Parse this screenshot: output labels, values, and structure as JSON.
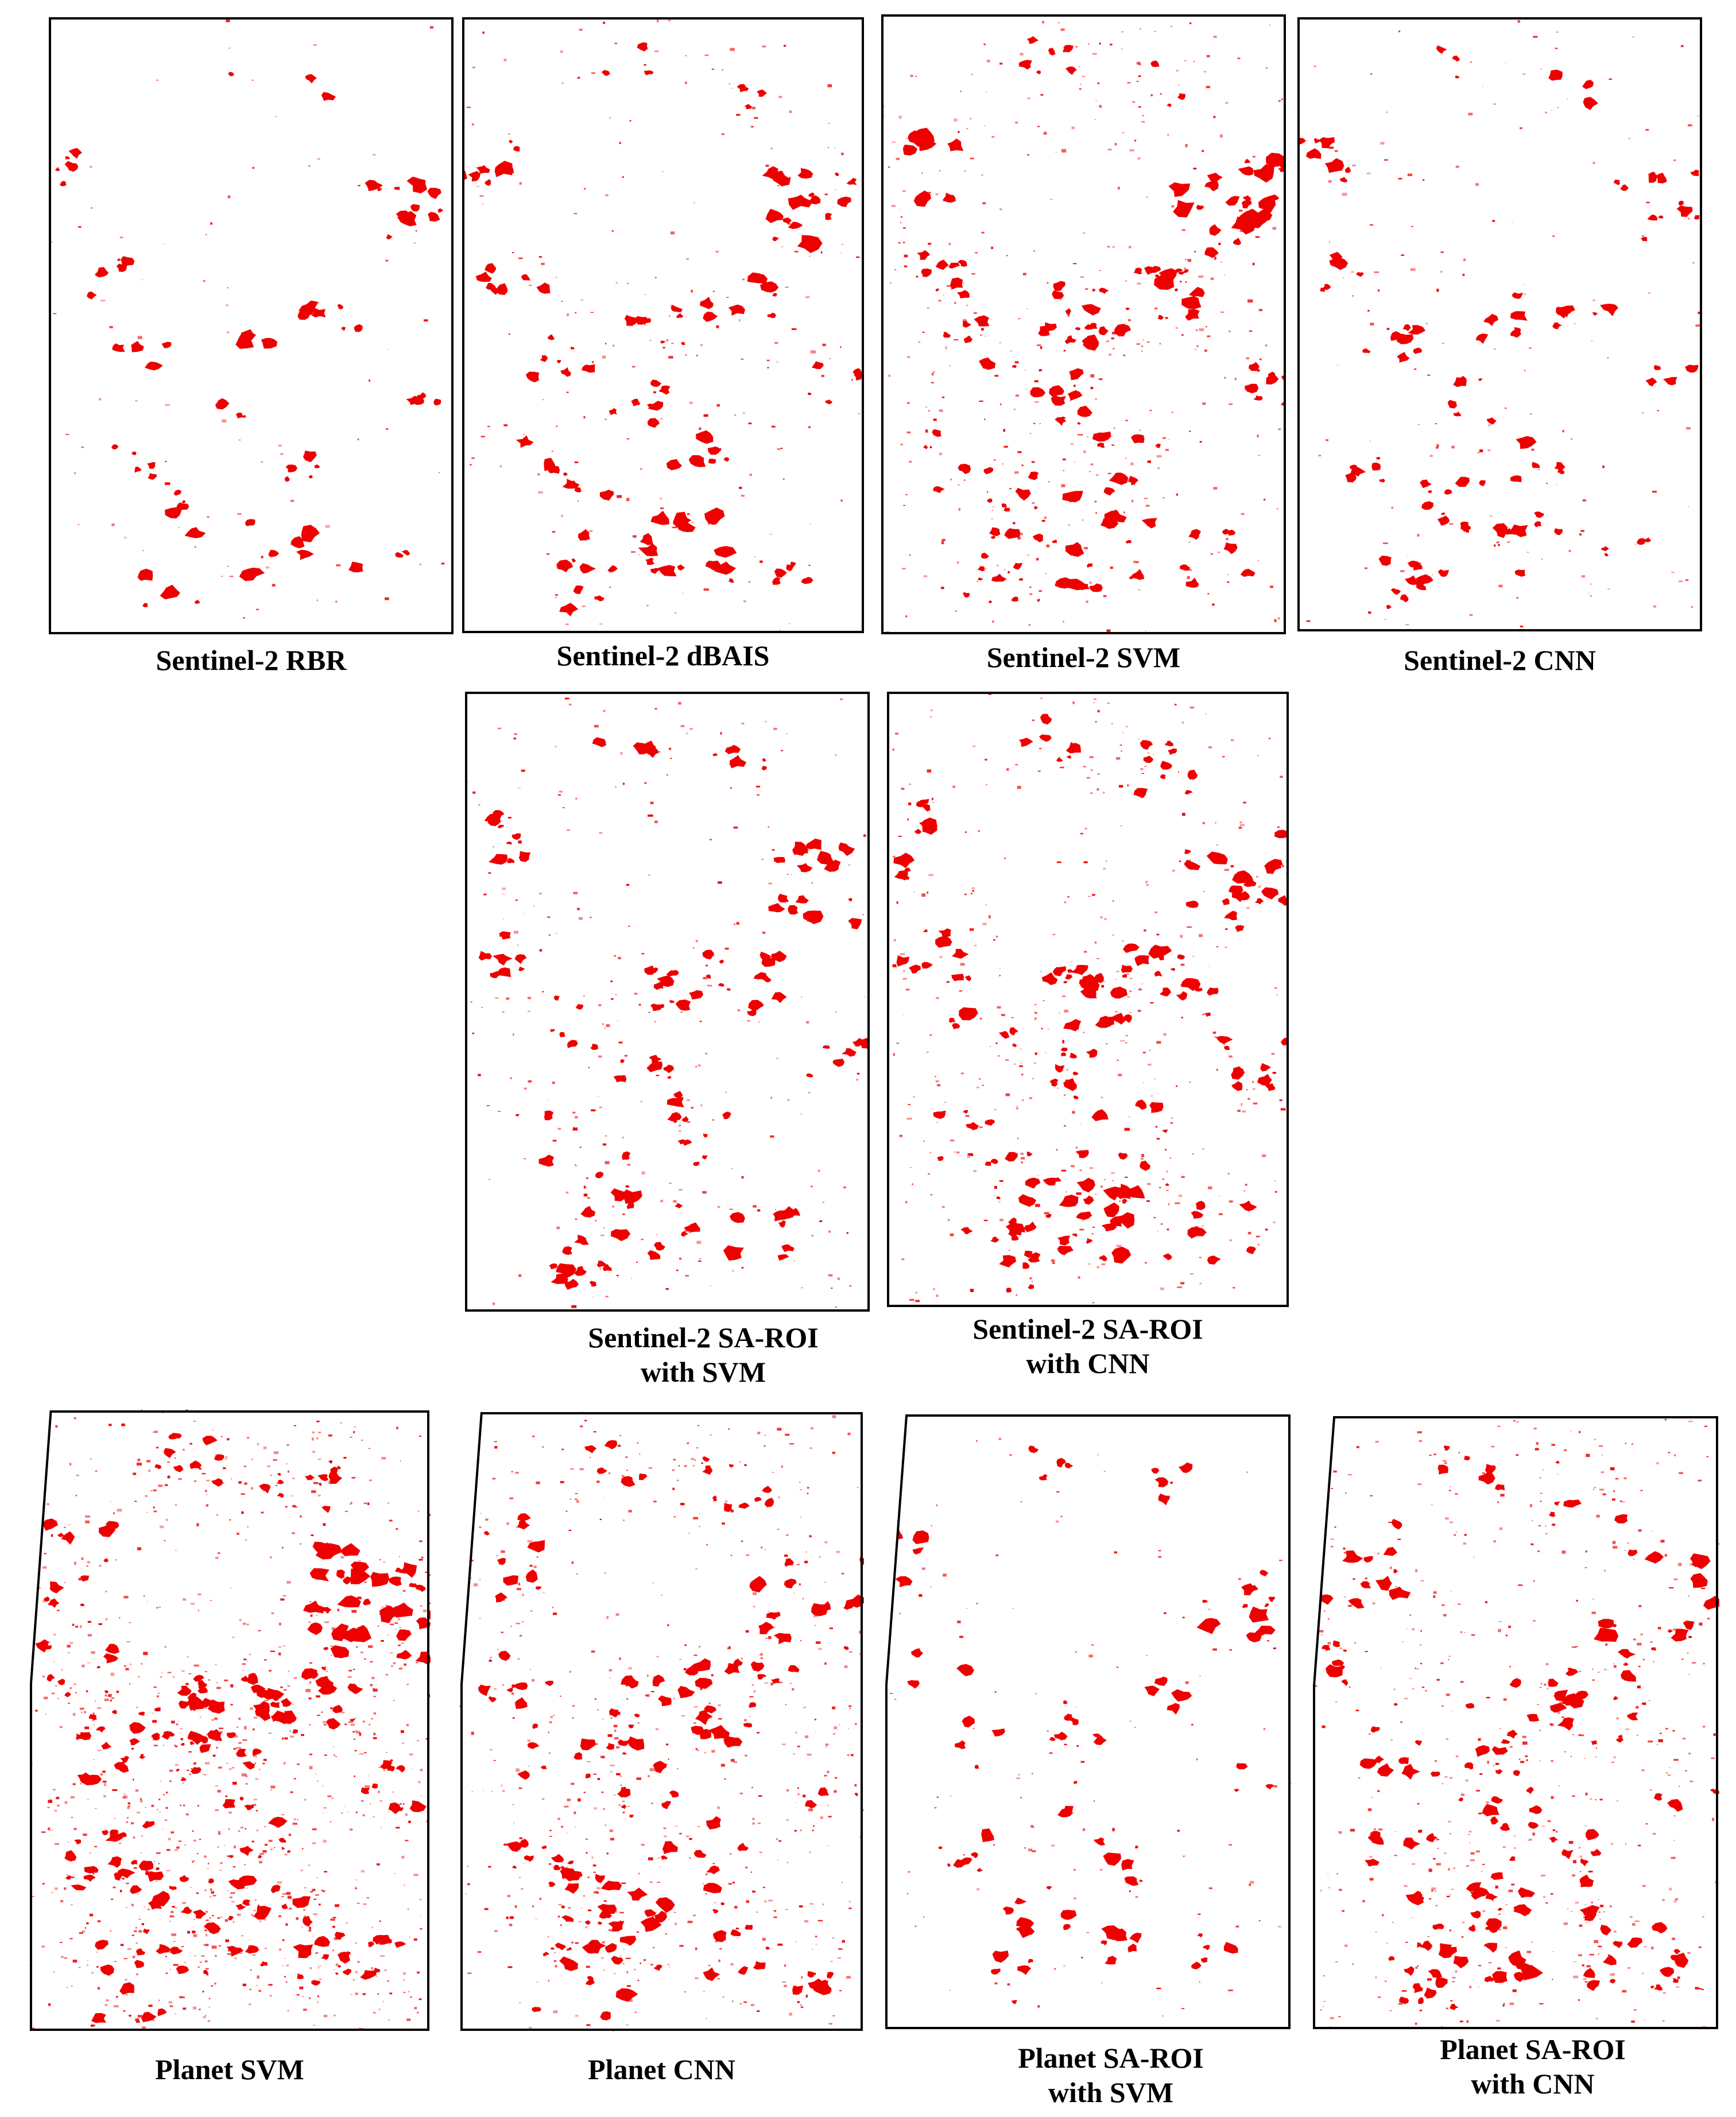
{
  "figure": {
    "burn_color": "#ee0000",
    "frame_color": "#000000",
    "background": "#ffffff",
    "panels": [
      {
        "id": "s2-rbr",
        "caption_lines": [
          "Sentinel-2 RBR"
        ],
        "burned_density": "low"
      },
      {
        "id": "s2-dbais",
        "caption_lines": [
          "Sentinel-2 dBAIS"
        ],
        "burned_density": "medium"
      },
      {
        "id": "s2-svm",
        "caption_lines": [
          "Sentinel-2 SVM"
        ],
        "burned_density": "medium-high"
      },
      {
        "id": "s2-cnn",
        "caption_lines": [
          "Sentinel-2 CNN"
        ],
        "burned_density": "medium"
      },
      {
        "id": "s2-saroi-svm",
        "caption_lines": [
          "Sentinel-2 SA-ROI",
          "with SVM"
        ],
        "burned_density": "medium"
      },
      {
        "id": "s2-saroi-cnn",
        "caption_lines": [
          "Sentinel-2 SA-ROI",
          "with CNN"
        ],
        "burned_density": "high"
      },
      {
        "id": "planet-svm",
        "caption_lines": [
          "Planet SVM"
        ],
        "burned_density": "very-high"
      },
      {
        "id": "planet-cnn",
        "caption_lines": [
          "Planet CNN"
        ],
        "burned_density": "high"
      },
      {
        "id": "planet-saroi-svm",
        "caption_lines": [
          "Planet SA-ROI",
          "with SVM"
        ],
        "burned_density": "low"
      },
      {
        "id": "planet-saroi-cnn",
        "caption_lines": [
          "Planet SA-ROI",
          "with CNN"
        ],
        "burned_density": "high"
      }
    ]
  }
}
